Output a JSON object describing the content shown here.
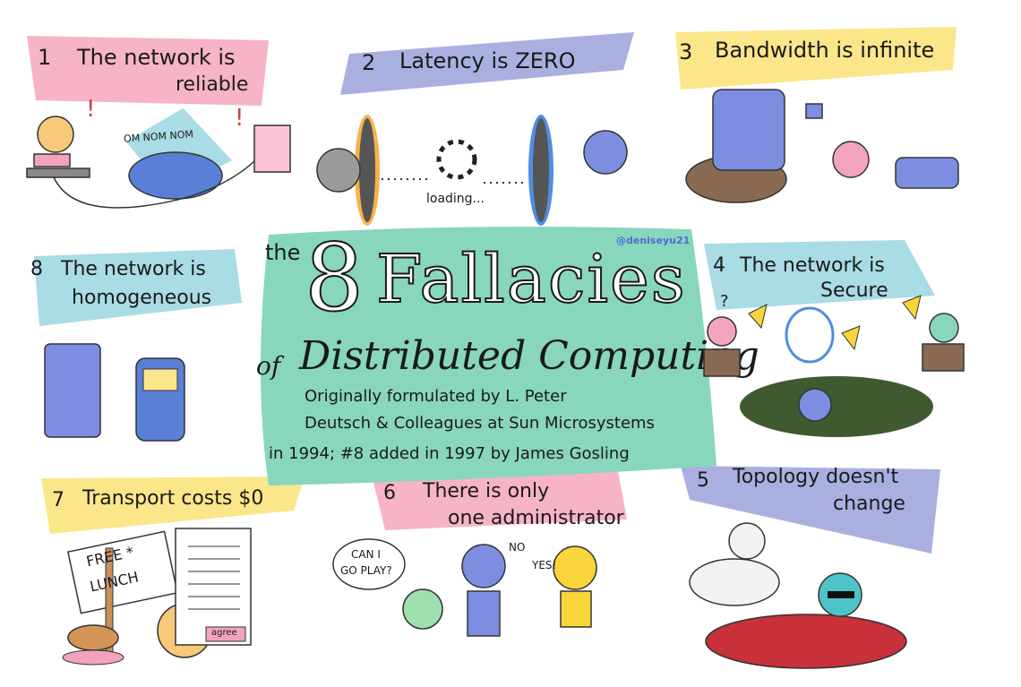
{
  "colors": {
    "pink": "#f6b4c6",
    "lavender": "#a9b0e0",
    "yellow": "#fbe68a",
    "teal": "#88d6be",
    "sky": "#a9dce4",
    "bg": "#ffffff"
  },
  "handle": "@deniseyu21",
  "center": {
    "word_the": "the",
    "big_number": "8",
    "word_fallacies": "Fallacies",
    "word_of": "of",
    "subtitle": "Distributed Computing",
    "credit_line1": "Originally formulated by L. Peter",
    "credit_line2": "Deutsch & Colleagues at  Sun Microsystems",
    "credit_line3": "in 1994; #8 added in 1997 by James Gosling"
  },
  "fallacies": [
    {
      "num": "1",
      "line1": "The network is",
      "line2": "reliable"
    },
    {
      "num": "2",
      "line1": "Latency is ZERO",
      "line2": ""
    },
    {
      "num": "3",
      "line1": "Bandwidth is infinite",
      "line2": ""
    },
    {
      "num": "4",
      "line1": "The network is",
      "line2": "Secure"
    },
    {
      "num": "5",
      "line1": "Topology doesn't",
      "line2": "change"
    },
    {
      "num": "6",
      "line1": "There is only",
      "line2": "one administrator"
    },
    {
      "num": "7",
      "line1": "Transport costs $0",
      "line2": ""
    },
    {
      "num": "8",
      "line1": "The network is",
      "line2": "homogeneous"
    }
  ],
  "scene_text": {
    "om_nom": "OM NOM NOM",
    "loading": "loading...",
    "question": "?",
    "free_lunch_1": "FREE *",
    "free_lunch_2": "LUNCH",
    "agree": "agree",
    "can_i": "CAN I",
    "go_play": "GO PLAY?",
    "no": "NO",
    "yes": "YES!"
  }
}
